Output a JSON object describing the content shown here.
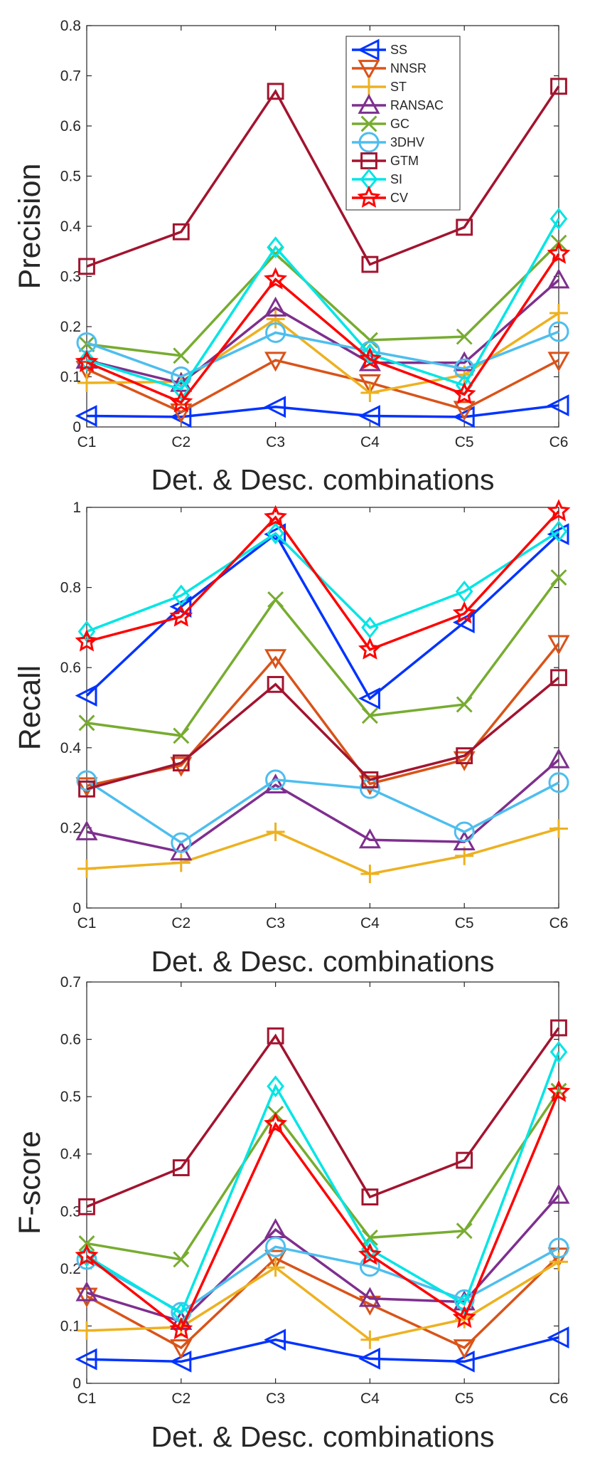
{
  "figure": {
    "series_styles": [
      {
        "name": "SS",
        "color": "#0033ff",
        "marker": "triangle-left"
      },
      {
        "name": "NNSR",
        "color": "#d95319",
        "marker": "triangle-down"
      },
      {
        "name": "ST",
        "color": "#edb120",
        "marker": "plus"
      },
      {
        "name": "RANSAC",
        "color": "#7e2f8e",
        "marker": "triangle-up"
      },
      {
        "name": "GC",
        "color": "#77ac30",
        "marker": "x"
      },
      {
        "name": "3DHV",
        "color": "#4dbeee",
        "marker": "circle"
      },
      {
        "name": "GTM",
        "color": "#a2142f",
        "marker": "square"
      },
      {
        "name": "SI",
        "color": "#00e5e5",
        "marker": "diamond"
      },
      {
        "name": "CV",
        "color": "#ff0000",
        "marker": "hexagram"
      }
    ]
  },
  "chart_data": [
    {
      "type": "line",
      "id": "precision",
      "title": "",
      "xlabel": "Det. & Desc. combinations",
      "ylabel": "Precision",
      "categories": [
        "C1",
        "C2",
        "C3",
        "C4",
        "C5",
        "C6"
      ],
      "ylim": [
        0,
        0.8
      ],
      "yticks": [
        "0",
        "0.1",
        "0.2",
        "0.3",
        "0.4",
        "0.5",
        "0.6",
        "0.7",
        "0.8"
      ],
      "legend": "top-center",
      "series": [
        {
          "name": "SS",
          "values": [
            0.022,
            0.02,
            0.04,
            0.022,
            0.02,
            0.043
          ]
        },
        {
          "name": "NNSR",
          "values": [
            0.115,
            0.03,
            0.133,
            0.088,
            0.035,
            0.133
          ]
        },
        {
          "name": "ST",
          "values": [
            0.088,
            0.09,
            0.215,
            0.068,
            0.104,
            0.227
          ]
        },
        {
          "name": "RANSAC",
          "values": [
            0.133,
            0.087,
            0.237,
            0.128,
            0.128,
            0.293
          ]
        },
        {
          "name": "GC",
          "values": [
            0.165,
            0.142,
            0.345,
            0.173,
            0.18,
            0.367
          ]
        },
        {
          "name": "3DHV",
          "values": [
            0.168,
            0.1,
            0.188,
            0.151,
            0.116,
            0.19
          ]
        },
        {
          "name": "GTM",
          "values": [
            0.32,
            0.389,
            0.669,
            0.324,
            0.398,
            0.679
          ]
        },
        {
          "name": "SI",
          "values": [
            0.133,
            0.075,
            0.358,
            0.145,
            0.083,
            0.415
          ]
        },
        {
          "name": "CV",
          "values": [
            0.129,
            0.049,
            0.294,
            0.135,
            0.065,
            0.345
          ]
        }
      ]
    },
    {
      "type": "line",
      "id": "recall",
      "title": "",
      "xlabel": "Det. & Desc. combinations",
      "ylabel": "Recall",
      "categories": [
        "C1",
        "C2",
        "C3",
        "C4",
        "C5",
        "C6"
      ],
      "ylim": [
        0,
        1
      ],
      "yticks": [
        "0",
        "0.2",
        "0.4",
        "0.6",
        "0.8",
        "1"
      ],
      "series": [
        {
          "name": "SS",
          "values": [
            0.53,
            0.752,
            0.933,
            0.523,
            0.713,
            0.933
          ]
        },
        {
          "name": "NNSR",
          "values": [
            0.305,
            0.356,
            0.625,
            0.31,
            0.37,
            0.66
          ]
        },
        {
          "name": "ST",
          "values": [
            0.098,
            0.113,
            0.19,
            0.085,
            0.13,
            0.198
          ]
        },
        {
          "name": "RANSAC",
          "values": [
            0.19,
            0.14,
            0.307,
            0.17,
            0.165,
            0.37
          ]
        },
        {
          "name": "GC",
          "values": [
            0.462,
            0.43,
            0.77,
            0.48,
            0.508,
            0.825
          ]
        },
        {
          "name": "3DHV",
          "values": [
            0.318,
            0.163,
            0.32,
            0.298,
            0.19,
            0.313
          ]
        },
        {
          "name": "GTM",
          "values": [
            0.297,
            0.362,
            0.558,
            0.32,
            0.38,
            0.575
          ]
        },
        {
          "name": "SI",
          "values": [
            0.69,
            0.78,
            0.935,
            0.7,
            0.79,
            0.94
          ]
        },
        {
          "name": "CV",
          "values": [
            0.665,
            0.727,
            0.975,
            0.645,
            0.735,
            0.99
          ]
        }
      ]
    },
    {
      "type": "line",
      "id": "fscore",
      "title": "",
      "xlabel": "Det. & Desc. combinations",
      "ylabel": "F-score",
      "categories": [
        "C1",
        "C2",
        "C3",
        "C4",
        "C5",
        "C6"
      ],
      "ylim": [
        0,
        0.7
      ],
      "yticks": [
        "0",
        "0.1",
        "0.2",
        "0.3",
        "0.4",
        "0.5",
        "0.6",
        "0.7"
      ],
      "series": [
        {
          "name": "SS",
          "values": [
            0.042,
            0.038,
            0.076,
            0.043,
            0.038,
            0.08
          ]
        },
        {
          "name": "NNSR",
          "values": [
            0.152,
            0.062,
            0.218,
            0.138,
            0.062,
            0.222
          ]
        },
        {
          "name": "ST",
          "values": [
            0.092,
            0.098,
            0.202,
            0.076,
            0.112,
            0.212
          ]
        },
        {
          "name": "RANSAC",
          "values": [
            0.158,
            0.108,
            0.268,
            0.148,
            0.142,
            0.328
          ]
        },
        {
          "name": "GC",
          "values": [
            0.244,
            0.216,
            0.47,
            0.254,
            0.266,
            0.51
          ]
        },
        {
          "name": "3DHV",
          "values": [
            0.216,
            0.124,
            0.238,
            0.204,
            0.146,
            0.236
          ]
        },
        {
          "name": "GTM",
          "values": [
            0.308,
            0.376,
            0.606,
            0.325,
            0.389,
            0.62
          ]
        },
        {
          "name": "SI",
          "values": [
            0.222,
            0.122,
            0.518,
            0.234,
            0.138,
            0.578
          ]
        },
        {
          "name": "CV",
          "values": [
            0.222,
            0.094,
            0.452,
            0.224,
            0.114,
            0.508
          ]
        }
      ]
    }
  ]
}
